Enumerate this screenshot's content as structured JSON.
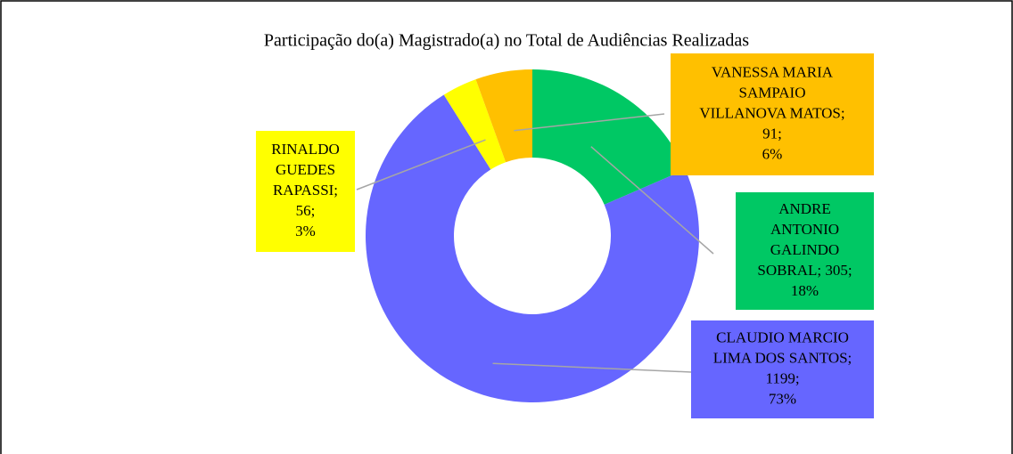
{
  "chart_data": {
    "type": "donut",
    "title": "Participação do(a) Magistrado(a) no Total de Audiências Realizadas",
    "categories": [
      "ANDRE ANTONIO GALINDO SOBRAL",
      "CLAUDIO MARCIO LIMA DOS SANTOS",
      "RINALDO GUEDES RAPASSI",
      "VANESSA MARIA SAMPAIO VILLANOVA MATOS"
    ],
    "values": [
      305,
      1199,
      56,
      91
    ],
    "colors": [
      "#00c864",
      "#6666ff",
      "#ffff00",
      "#ffc000"
    ],
    "value_labels": [
      [
        "ANDRE",
        "ANTONIO",
        "GALINDO",
        "SOBRAL; 305;",
        "18%"
      ],
      [
        "CLAUDIO MARCIO",
        "LIMA DOS SANTOS;",
        "1199;",
        "73%"
      ],
      [
        "RINALDO",
        "GUEDES",
        "RAPASSI;",
        "56;",
        "3%"
      ],
      [
        "VANESSA MARIA",
        "SAMPAIO",
        "VILLANOVA MATOS;",
        "91;",
        "6%"
      ]
    ]
  }
}
